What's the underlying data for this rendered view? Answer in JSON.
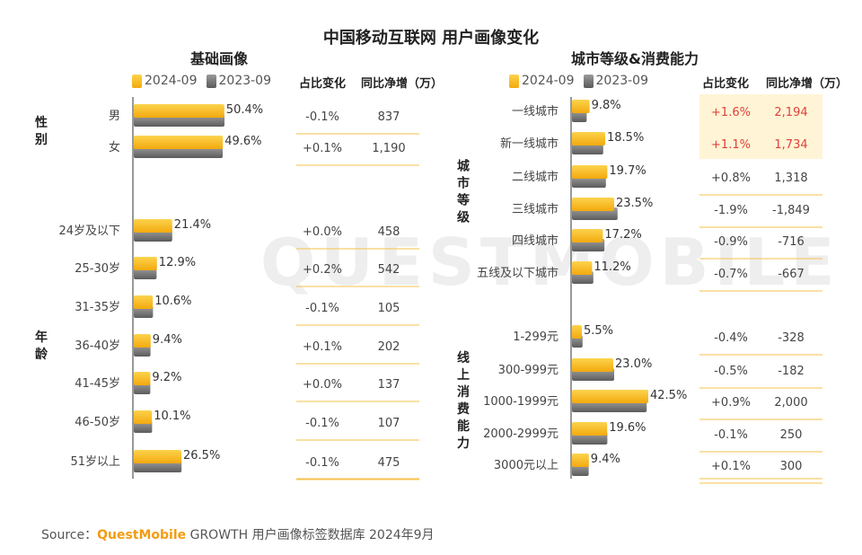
{
  "title": "中国移动互联网 用户画像变化",
  "watermark": "QUESTMOBILE",
  "legend": {
    "current": "2024-09",
    "previous": "2023-09"
  },
  "table_headers": {
    "share_change": "占比变化",
    "net_growth": "同比净增（万）"
  },
  "source": {
    "prefix": "Source：",
    "brand": "QuestMobile",
    "text": " GROWTH 用户画像标签数据库 2024年9月"
  },
  "colors": {
    "current": "#f5b21a",
    "previous": "#7a7a7a",
    "highlight_bg": "#fff4d6",
    "highlight_text": "#e0413a"
  },
  "chart_data": [
    {
      "type": "bar",
      "title": "基础画像",
      "groups": [
        {
          "label": "性别",
          "categories": [
            "男",
            "女"
          ],
          "values": [
            50.4,
            49.6
          ],
          "value_labels": [
            "50.4%",
            "49.6%"
          ],
          "share_change": [
            "-0.1%",
            "+0.1%"
          ],
          "net_growth": [
            "837",
            "1,190"
          ]
        },
        {
          "label": "年龄",
          "categories": [
            "24岁及以下",
            "25-30岁",
            "31-35岁",
            "36-40岁",
            "41-45岁",
            "46-50岁",
            "51岁以上"
          ],
          "values": [
            21.4,
            12.9,
            10.6,
            9.4,
            9.2,
            10.1,
            26.5
          ],
          "value_labels": [
            "21.4%",
            "12.9%",
            "10.6%",
            "9.4%",
            "9.2%",
            "10.1%",
            "26.5%"
          ],
          "share_change": [
            "+0.0%",
            "+0.2%",
            "-0.1%",
            "+0.1%",
            "+0.0%",
            "-0.1%",
            "-0.1%"
          ],
          "net_growth": [
            "458",
            "542",
            "105",
            "202",
            "137",
            "107",
            "475"
          ]
        }
      ],
      "series": [
        {
          "name": "2024-09",
          "values": [
            50.4,
            49.6,
            21.4,
            12.9,
            10.6,
            9.4,
            9.2,
            10.1,
            26.5
          ]
        },
        {
          "name": "2023-09",
          "values": [
            50.5,
            49.5,
            21.4,
            12.7,
            10.7,
            9.3,
            9.2,
            10.2,
            26.6
          ]
        }
      ]
    },
    {
      "type": "bar",
      "title": "城市等级&消费能力",
      "groups": [
        {
          "label": "城市等级",
          "categories": [
            "一线城市",
            "新一线城市",
            "二线城市",
            "三线城市",
            "四线城市",
            "五线及以下城市"
          ],
          "values": [
            9.8,
            18.5,
            19.7,
            23.5,
            17.2,
            11.2
          ],
          "value_labels": [
            "9.8%",
            "18.5%",
            "19.7%",
            "23.5%",
            "17.2%",
            "11.2%"
          ],
          "share_change": [
            "+1.6%",
            "+1.1%",
            "+0.8%",
            "-1.9%",
            "-0.9%",
            "-0.7%"
          ],
          "net_growth": [
            "2,194",
            "1,734",
            "1,318",
            "-1,849",
            "-716",
            "-667"
          ],
          "highlight": [
            true,
            true,
            false,
            false,
            false,
            false
          ]
        },
        {
          "label": "线上消费能力",
          "categories": [
            "1-299元",
            "300-999元",
            "1000-1999元",
            "2000-2999元",
            "3000元以上"
          ],
          "values": [
            5.5,
            23.0,
            42.5,
            19.6,
            9.4
          ],
          "value_labels": [
            "5.5%",
            "23.0%",
            "42.5%",
            "19.6%",
            "9.4%"
          ],
          "share_change": [
            "-0.4%",
            "-0.5%",
            "+0.9%",
            "-0.1%",
            "+0.1%"
          ],
          "net_growth": [
            "-328",
            "-182",
            "2,000",
            "250",
            "300"
          ]
        }
      ],
      "series": [
        {
          "name": "2024-09",
          "values": [
            9.8,
            18.5,
            19.7,
            23.5,
            17.2,
            11.2,
            5.5,
            23.0,
            42.5,
            19.6,
            9.4
          ]
        },
        {
          "name": "2023-09",
          "values": [
            8.2,
            17.4,
            18.9,
            25.4,
            18.1,
            11.9,
            5.9,
            23.5,
            41.6,
            19.7,
            9.3
          ]
        }
      ]
    }
  ]
}
